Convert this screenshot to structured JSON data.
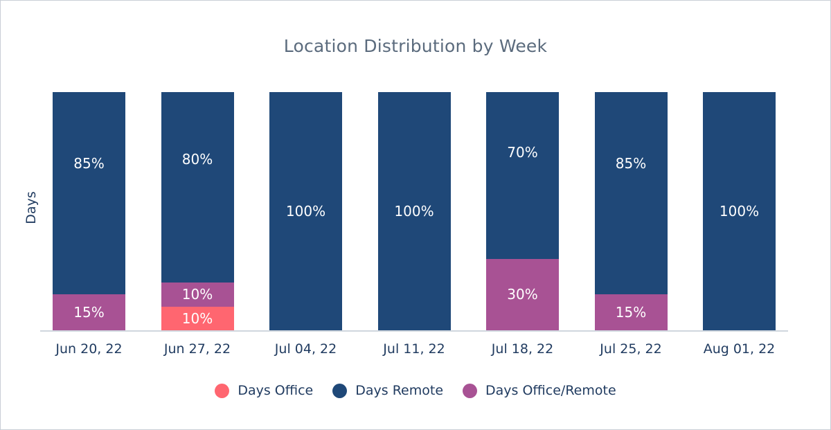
{
  "chart_data": {
    "type": "bar",
    "stacked": true,
    "percent": true,
    "title": "Location Distribution by Week",
    "xlabel": "",
    "ylabel": "Days",
    "ylim": [
      0,
      100
    ],
    "grid": false,
    "legend_position": "bottom",
    "categories": [
      "Jun 20, 22",
      "Jun 27, 22",
      "Jul 04, 22",
      "Jul 11, 22",
      "Jul 18, 22",
      "Jul 25, 22",
      "Aug 01, 22"
    ],
    "series": [
      {
        "name": "Days Office",
        "key": "office",
        "color": "#ff6670",
        "values": [
          0,
          10,
          0,
          0,
          0,
          0,
          0
        ]
      },
      {
        "name": "Days Office/Remote",
        "key": "mixed",
        "color": "#a85294",
        "values": [
          15,
          10,
          0,
          0,
          30,
          15,
          0
        ]
      },
      {
        "name": "Days Remote",
        "key": "remote",
        "color": "#1f4878",
        "values": [
          85,
          80,
          100,
          100,
          70,
          85,
          100
        ]
      }
    ],
    "legend": [
      {
        "label": "Days Office",
        "color": "#ff6670"
      },
      {
        "label": "Days Remote",
        "color": "#1f4878"
      },
      {
        "label": "Days Office/Remote",
        "color": "#a85294"
      }
    ]
  }
}
